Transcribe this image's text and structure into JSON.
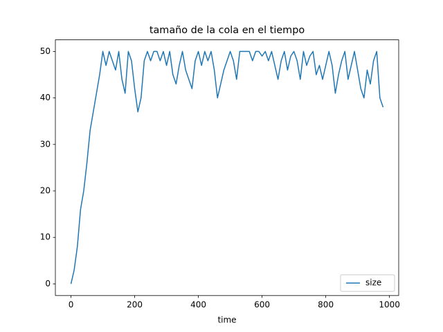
{
  "chart_data": {
    "type": "line",
    "title": "tamaño de la cola en el tiempo",
    "x_label": "time",
    "x": [
      0,
      10,
      20,
      30,
      40,
      50,
      60,
      70,
      80,
      90,
      100,
      110,
      120,
      130,
      140,
      150,
      160,
      170,
      180,
      190,
      200,
      210,
      220,
      230,
      240,
      250,
      260,
      270,
      280,
      290,
      300,
      310,
      320,
      330,
      340,
      350,
      360,
      370,
      380,
      390,
      400,
      410,
      420,
      430,
      440,
      450,
      460,
      470,
      480,
      490,
      500,
      510,
      520,
      530,
      540,
      550,
      560,
      570,
      580,
      590,
      600,
      610,
      620,
      630,
      640,
      650,
      660,
      670,
      680,
      690,
      700,
      710,
      720,
      730,
      740,
      750,
      760,
      770,
      780,
      790,
      800,
      810,
      820,
      830,
      840,
      850,
      860,
      870,
      880,
      890,
      900,
      910,
      920,
      930,
      940,
      950,
      960,
      970,
      980
    ],
    "series": [
      {
        "name": "size",
        "color": "#1f77b4",
        "values": [
          0,
          3,
          8,
          16,
          20,
          26,
          33,
          37,
          41,
          45,
          50,
          47,
          50,
          48,
          46,
          50,
          44,
          41,
          50,
          48,
          42,
          37,
          40,
          48,
          50,
          48,
          50,
          50,
          48,
          50,
          47,
          50,
          45,
          43,
          47,
          50,
          46,
          44,
          42,
          48,
          50,
          47,
          50,
          48,
          50,
          46,
          40,
          43,
          46,
          48,
          50,
          48,
          44,
          50,
          50,
          50,
          50,
          48,
          50,
          50,
          49,
          50,
          48,
          50,
          47,
          44,
          48,
          50,
          46,
          49,
          50,
          48,
          44,
          50,
          47,
          49,
          50,
          45,
          47,
          44,
          47,
          50,
          47,
          41,
          45,
          48,
          50,
          44,
          47,
          50,
          46,
          42,
          40,
          46,
          43,
          48,
          50,
          40,
          38
        ]
      }
    ],
    "xlim": [
      -49,
      1029
    ],
    "ylim": [
      -2.5,
      52.5
    ],
    "xticks": [
      0,
      200,
      400,
      600,
      800,
      1000
    ],
    "yticks": [
      0,
      10,
      20,
      30,
      40,
      50
    ],
    "legend": "lower right"
  }
}
